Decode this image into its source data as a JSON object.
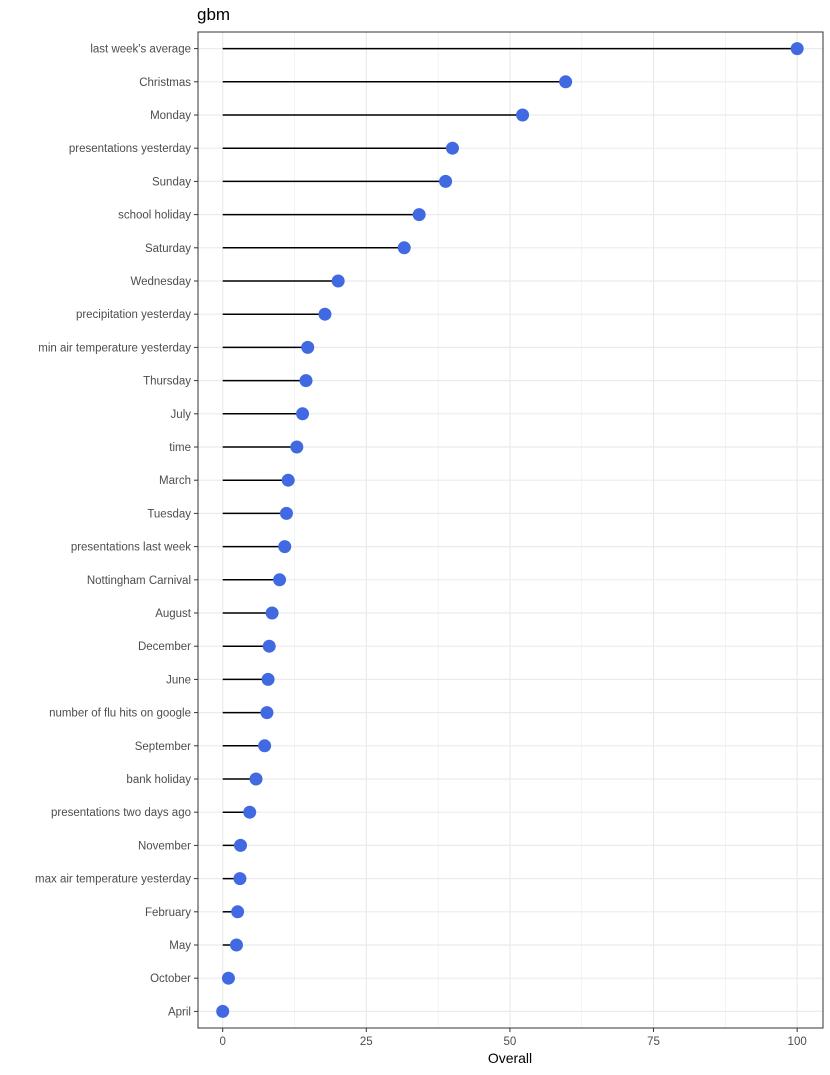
{
  "chart_data": {
    "type": "lollipop",
    "title": "gbm",
    "xlabel": "Overall",
    "ylabel": "",
    "xlim": [
      -4.3,
      104.5
    ],
    "x_ticks": [
      0,
      25,
      50,
      75,
      100
    ],
    "grid": true,
    "point_color": "#4169e1",
    "stem_color": "#000000",
    "categories": [
      "last week's average",
      "Christmas",
      "Monday",
      "presentations yesterday",
      "Sunday",
      "school holiday",
      "Saturday",
      "Wednesday",
      "precipitation yesterday",
      "min air temperature yesterday",
      "Thursday",
      "July",
      "time",
      "March",
      "Tuesday",
      "presentations last week",
      "Nottingham Carnival",
      "August",
      "December",
      "June",
      "number of flu hits on google",
      "September",
      "bank holiday",
      "presentations two days ago",
      "November",
      "max air temperature yesterday",
      "February",
      "May",
      "October",
      "April"
    ],
    "values": [
      100,
      59.7,
      52.2,
      40.0,
      38.8,
      34.2,
      31.6,
      20.1,
      17.8,
      14.8,
      14.5,
      13.9,
      12.9,
      11.4,
      11.1,
      10.8,
      9.9,
      8.6,
      8.1,
      7.9,
      7.7,
      7.3,
      5.8,
      4.7,
      3.1,
      3.0,
      2.6,
      2.4,
      1.0,
      0
    ]
  }
}
